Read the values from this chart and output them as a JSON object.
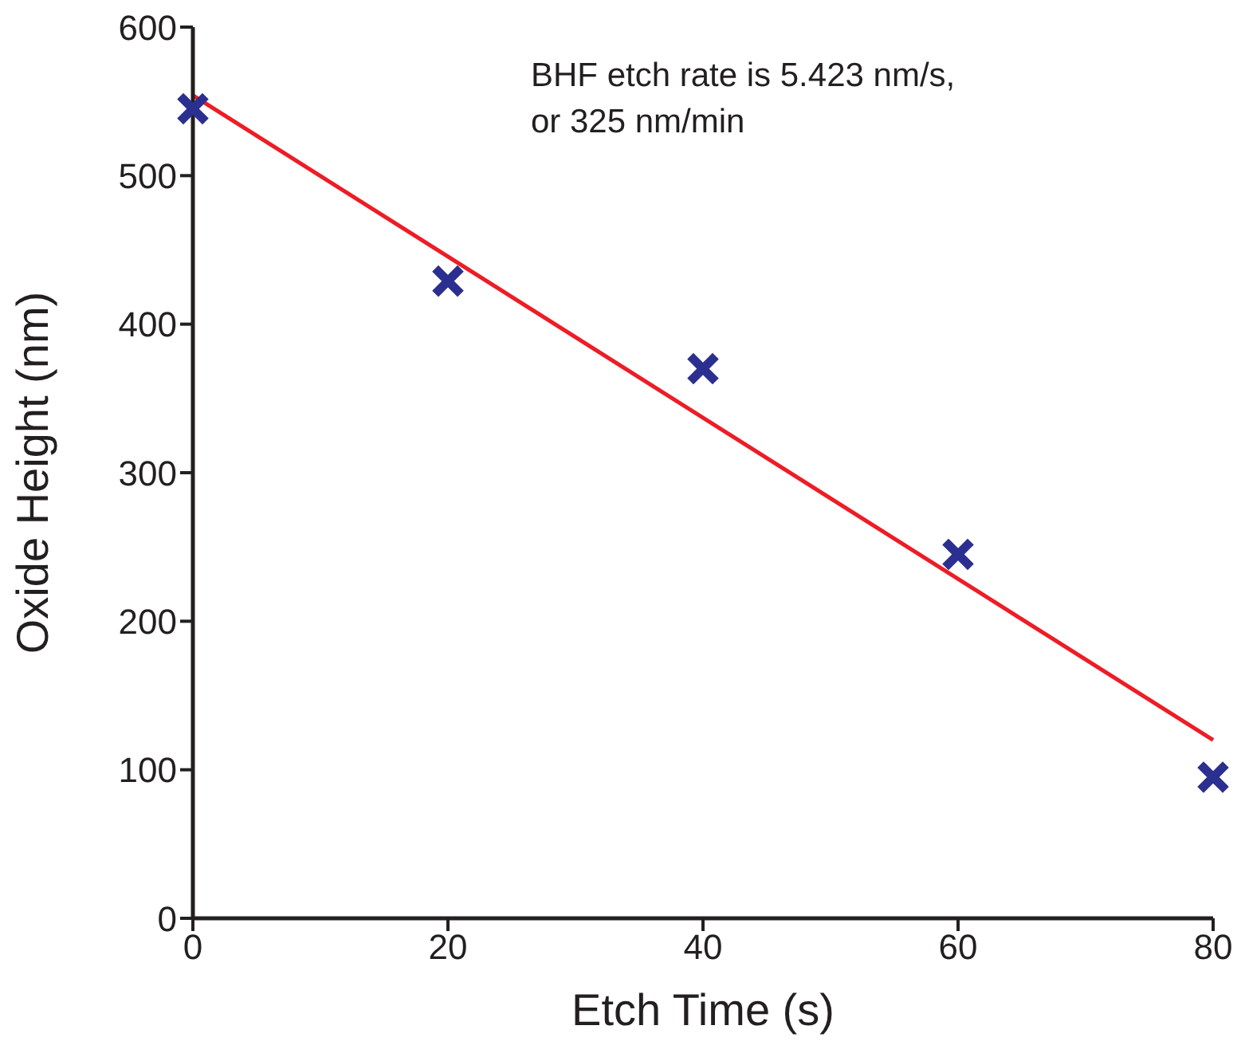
{
  "chart_data": {
    "type": "scatter",
    "xlabel": "Etch Time (s)",
    "ylabel": "Oxide Height (nm)",
    "x": [
      0,
      20,
      40,
      60,
      80
    ],
    "series": [
      {
        "color": "#2b2f8f",
        "values": [
          545,
          429,
          370,
          245,
          95
        ],
        "marker": "cross"
      },
      {
        "type": "line",
        "color": "#ee1c25",
        "x": [
          0,
          80
        ],
        "values": [
          554,
          120
        ],
        "marker": "none",
        "line_style": "solid"
      }
    ],
    "xlim": [
      0,
      80
    ],
    "xticks": [
      0,
      20,
      40,
      60,
      80
    ],
    "ylim": [
      0,
      600
    ],
    "yticks": [
      0,
      100,
      200,
      300,
      400,
      500,
      600
    ],
    "grid": false,
    "legend": false,
    "annotations": [
      "BHF etch rate is 5.423 nm/s, or 325 nm/min"
    ]
  }
}
